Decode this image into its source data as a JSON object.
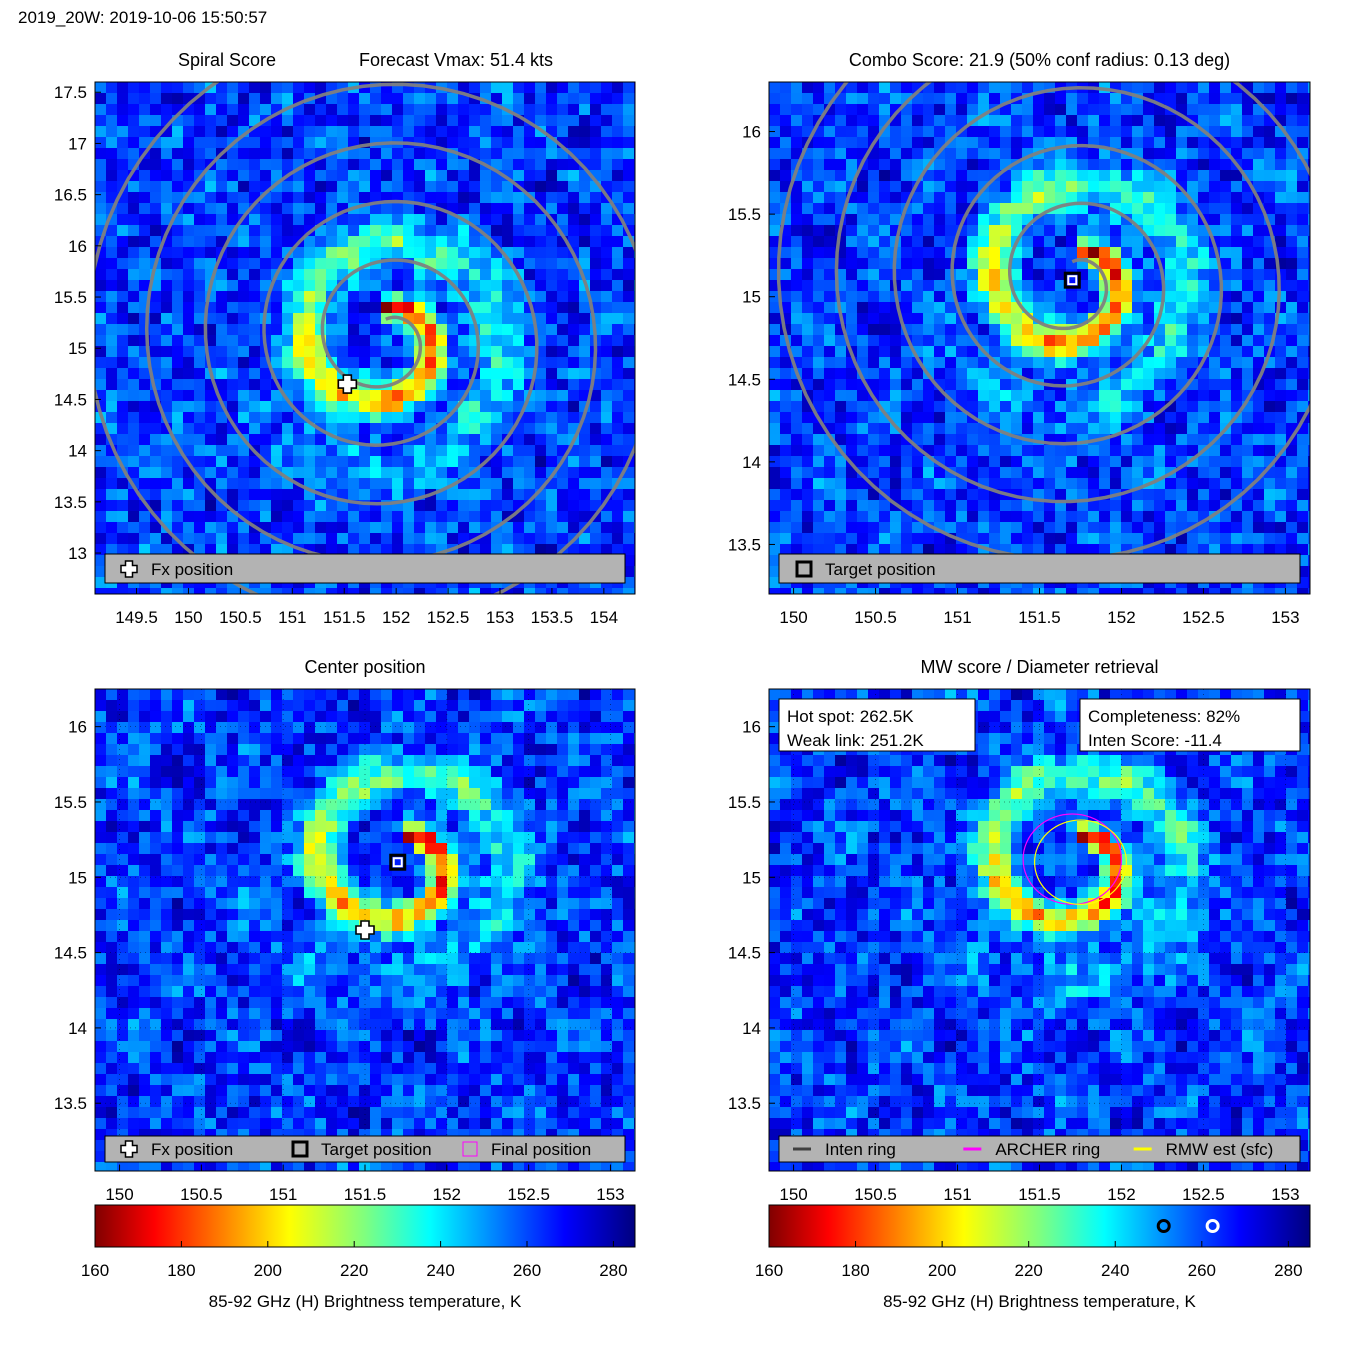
{
  "header": "2019_20W: 2019-10-06 15:50:57",
  "colorbar": {
    "label": "85-92 GHz (H) Brightness temperature, K",
    "ticks": [
      160,
      180,
      200,
      220,
      240,
      260,
      280
    ],
    "markers": [
      {
        "name": "Weak link",
        "value": 251.2,
        "color": "#000000"
      },
      {
        "name": "Hot spot",
        "value": 262.5,
        "color": "#ffffff"
      }
    ]
  },
  "chart_data": [
    {
      "type": "heatmap",
      "title_left": "Spiral Score",
      "title_right": "Forecast Vmax: 51.4 kts",
      "xlim": [
        149.1,
        154.3
      ],
      "ylim": [
        12.6,
        17.6
      ],
      "xticks": [
        "149.5",
        "150",
        "150.5",
        "151",
        "151.5",
        "152",
        "152.5",
        "153",
        "153.5",
        "154"
      ],
      "yticks": [
        "13",
        "13.5",
        "14",
        "14.5",
        "15",
        "15.5",
        "16",
        "16.5",
        "17",
        "17.5"
      ],
      "center": [
        151.9,
        15.1
      ],
      "scale": 1.0,
      "fx_position": [
        151.53,
        14.65
      ],
      "legend": [
        {
          "symbol": "plus",
          "label": "Fx position"
        }
      ],
      "contours": "gray spiral"
    },
    {
      "type": "heatmap",
      "title": "Combo Score: 21.9  (50% conf radius: 0.13 deg)",
      "xlim": [
        149.85,
        153.15
      ],
      "ylim": [
        13.2,
        16.3
      ],
      "xticks": [
        "150",
        "150.5",
        "151",
        "151.5",
        "152",
        "152.5",
        "153"
      ],
      "yticks": [
        "13.5",
        "14",
        "14.5",
        "15",
        "15.5",
        "16"
      ],
      "center": [
        151.7,
        15.1
      ],
      "scale": 1.6,
      "target_position": [
        151.7,
        15.1
      ],
      "legend": [
        {
          "symbol": "square",
          "label": "Target position"
        }
      ],
      "contours": "gray rings"
    },
    {
      "type": "heatmap",
      "title": "Center position",
      "xlim": [
        149.85,
        153.15
      ],
      "ylim": [
        13.05,
        16.25
      ],
      "xticks": [
        "150",
        "150.5",
        "151",
        "151.5",
        "152",
        "152.5",
        "153"
      ],
      "yticks": [
        "13.5",
        "14",
        "14.5",
        "15",
        "15.5",
        "16"
      ],
      "center": [
        151.7,
        15.1
      ],
      "scale": 1.6,
      "fx_position": [
        151.5,
        14.65
      ],
      "target_position": [
        151.7,
        15.1
      ],
      "final_position": [
        151.7,
        15.1
      ],
      "legend": [
        {
          "symbol": "plus",
          "label": "Fx position"
        },
        {
          "symbol": "square",
          "label": "Target position"
        },
        {
          "symbol": "magenta-square",
          "label": "Final position"
        }
      ]
    },
    {
      "type": "heatmap",
      "title": "MW score / Diameter retrieval",
      "xlim": [
        149.85,
        153.15
      ],
      "ylim": [
        13.05,
        16.25
      ],
      "xticks": [
        "150",
        "150.5",
        "151",
        "151.5",
        "152",
        "152.5",
        "153"
      ],
      "yticks": [
        "13.5",
        "14",
        "14.5",
        "15",
        "15.5",
        "16"
      ],
      "center": [
        151.7,
        15.1
      ],
      "scale": 1.6,
      "info_left": [
        "Hot spot: 262.5K",
        "Weak link: 251.2K"
      ],
      "info_right": [
        "Completeness: 82%",
        "Inten Score: -11.4"
      ],
      "archer_ring": {
        "center": [
          151.7,
          15.12
        ],
        "radius_deg": 0.3
      },
      "rmw_ring": {
        "center": [
          151.75,
          15.1
        ],
        "radius_deg": 0.28
      },
      "legend": [
        {
          "symbol": "line",
          "color": "#404040",
          "label": "Inten ring"
        },
        {
          "symbol": "line",
          "color": "#ff00ff",
          "label": "ARCHER ring"
        },
        {
          "symbol": "line",
          "color": "#ffff00",
          "label": "RMW est (sfc)"
        }
      ]
    }
  ]
}
